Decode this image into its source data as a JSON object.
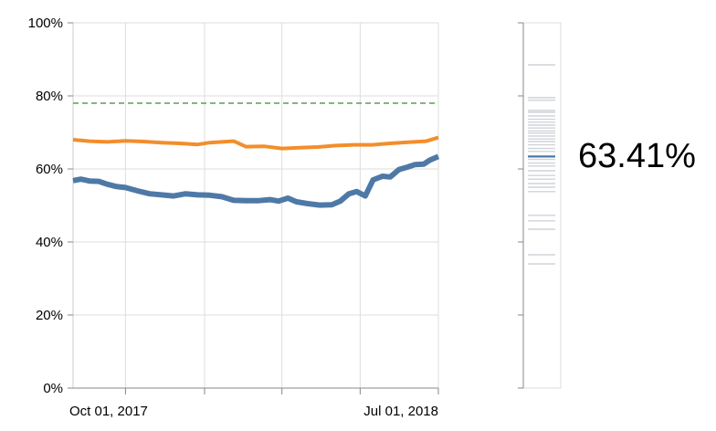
{
  "chart_data": [
    {
      "type": "line",
      "x_type": "date",
      "x_ticks": [
        "2017-10-01",
        "2018-01-01",
        "2018-04-01",
        "2018-07-01",
        "2018-09-30"
      ],
      "x_tick_labels": [
        "Oct 01, 2017",
        "Jul 01, 2018"
      ],
      "xlim": [
        "2017-08-01",
        "2018-09-30"
      ],
      "ylim": [
        0,
        100
      ],
      "y_ticks": [
        0,
        20,
        40,
        60,
        80,
        100
      ],
      "y_tick_labels": [
        "0%",
        "20%",
        "40%",
        "60%",
        "80%",
        "100%"
      ],
      "grid": true,
      "reference_line": {
        "value": 78,
        "color": "#59a14f",
        "style": "dashed"
      },
      "series": [
        {
          "color": "#4e79a7",
          "points": [
            [
              "2017-08-01",
              56.8
            ],
            [
              "2017-08-10",
              57.2
            ],
            [
              "2017-08-20",
              56.7
            ],
            [
              "2017-08-31",
              56.6
            ],
            [
              "2017-09-10",
              55.8
            ],
            [
              "2017-09-20",
              55.2
            ],
            [
              "2017-10-01",
              54.9
            ],
            [
              "2017-10-15",
              54.0
            ],
            [
              "2017-10-29",
              53.2
            ],
            [
              "2017-11-12",
              52.9
            ],
            [
              "2017-11-26",
              52.6
            ],
            [
              "2017-12-10",
              53.2
            ],
            [
              "2017-12-24",
              52.9
            ],
            [
              "2018-01-07",
              52.8
            ],
            [
              "2018-01-21",
              52.4
            ],
            [
              "2018-02-04",
              51.4
            ],
            [
              "2018-02-18",
              51.3
            ],
            [
              "2018-03-04",
              51.3
            ],
            [
              "2018-03-18",
              51.6
            ],
            [
              "2018-03-28",
              51.2
            ],
            [
              "2018-04-08",
              52.0
            ],
            [
              "2018-04-18",
              51.0
            ],
            [
              "2018-05-01",
              50.5
            ],
            [
              "2018-05-15",
              50.1
            ],
            [
              "2018-05-29",
              50.2
            ],
            [
              "2018-06-08",
              51.2
            ],
            [
              "2018-06-18",
              53.2
            ],
            [
              "2018-06-27",
              53.8
            ],
            [
              "2018-07-07",
              52.6
            ],
            [
              "2018-07-16",
              57.0
            ],
            [
              "2018-07-27",
              58.0
            ],
            [
              "2018-08-05",
              57.8
            ],
            [
              "2018-08-15",
              59.8
            ],
            [
              "2018-08-25",
              60.5
            ],
            [
              "2018-09-03",
              61.2
            ],
            [
              "2018-09-13",
              61.3
            ],
            [
              "2018-09-20",
              62.4
            ],
            [
              "2018-09-30",
              63.4
            ]
          ]
        },
        {
          "color": "#f28e2b",
          "points": [
            [
              "2017-08-01",
              68.0
            ],
            [
              "2017-08-20",
              67.6
            ],
            [
              "2017-09-10",
              67.4
            ],
            [
              "2017-10-01",
              67.7
            ],
            [
              "2017-10-22",
              67.5
            ],
            [
              "2017-11-12",
              67.2
            ],
            [
              "2017-12-03",
              67.0
            ],
            [
              "2017-12-24",
              66.7
            ],
            [
              "2018-01-07",
              67.2
            ],
            [
              "2018-01-21",
              67.4
            ],
            [
              "2018-02-04",
              67.6
            ],
            [
              "2018-02-18",
              66.1
            ],
            [
              "2018-03-11",
              66.2
            ],
            [
              "2018-04-01",
              65.6
            ],
            [
              "2018-04-22",
              65.8
            ],
            [
              "2018-05-13",
              66.0
            ],
            [
              "2018-06-03",
              66.4
            ],
            [
              "2018-06-24",
              66.6
            ],
            [
              "2018-07-15",
              66.6
            ],
            [
              "2018-08-05",
              67.0
            ],
            [
              "2018-08-26",
              67.3
            ],
            [
              "2018-09-16",
              67.6
            ],
            [
              "2018-09-30",
              68.6
            ]
          ]
        }
      ]
    },
    {
      "type": "strip",
      "ylim": [
        0,
        100
      ],
      "values": [
        88.5,
        79.5,
        78.8,
        76.0,
        75.5,
        74.5,
        73.6,
        72.8,
        72.0,
        71.2,
        70.4,
        69.8,
        69.0,
        68.2,
        67.5,
        66.6,
        65.6,
        64.8,
        63.41,
        62.6,
        61.6,
        60.8,
        59.5,
        58.2,
        57.2,
        56.0,
        55.0,
        53.8,
        47.3,
        45.8,
        43.5,
        36.5,
        34.0
      ],
      "highlight": {
        "value": 63.41,
        "color": "#4e79a7"
      },
      "value_label": "63.41%"
    }
  ]
}
